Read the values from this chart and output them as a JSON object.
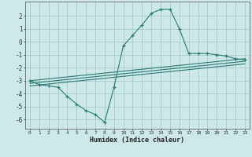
{
  "xlabel": "Humidex (Indice chaleur)",
  "ylabel": "",
  "background_color": "#cce8e8",
  "grid_color": "#aacccc",
  "line_color": "#2a7a70",
  "xlim": [
    -0.5,
    23.5
  ],
  "ylim": [
    -6.7,
    3.1
  ],
  "xticks": [
    0,
    1,
    2,
    3,
    4,
    5,
    6,
    7,
    8,
    9,
    10,
    11,
    12,
    13,
    14,
    15,
    16,
    17,
    18,
    19,
    20,
    21,
    22,
    23
  ],
  "yticks": [
    -6,
    -5,
    -4,
    -3,
    -2,
    -1,
    0,
    1,
    2
  ],
  "line1_x": [
    0,
    1,
    2,
    3,
    4,
    5,
    6,
    7,
    8,
    9,
    10,
    11,
    12,
    13,
    14,
    15,
    16,
    17,
    18,
    19,
    20,
    21,
    22,
    23
  ],
  "line1_y": [
    -3.0,
    -3.3,
    -3.4,
    -3.5,
    -4.2,
    -4.8,
    -5.3,
    -5.6,
    -6.2,
    -3.5,
    -0.3,
    0.5,
    1.3,
    2.2,
    2.5,
    2.5,
    1.0,
    -0.9,
    -0.9,
    -0.9,
    -1.0,
    -1.1,
    -1.3,
    -1.4
  ],
  "line2_x": [
    0,
    23
  ],
  "line2_y": [
    -3.0,
    -1.3
  ],
  "line3_x": [
    0,
    23
  ],
  "line3_y": [
    -3.2,
    -1.5
  ],
  "line4_x": [
    0,
    23
  ],
  "line4_y": [
    -3.4,
    -1.7
  ]
}
